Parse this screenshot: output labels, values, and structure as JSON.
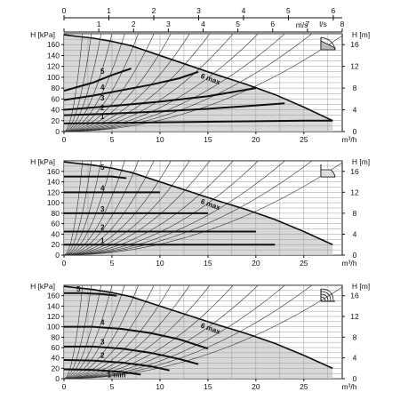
{
  "chart_data": {
    "top_axes": {
      "upper": {
        "ticks": [
          "0",
          "1",
          "2",
          "3",
          "4",
          "5",
          "6"
        ],
        "values": [
          0,
          1,
          2,
          3,
          4,
          5,
          6
        ],
        "unit_label": "m/s"
      },
      "lower": {
        "ticks": [
          "0",
          "1",
          "2",
          "3",
          "4",
          "5",
          "6",
          "7",
          "8"
        ],
        "values": [
          0,
          1,
          2,
          3,
          4,
          5,
          6,
          7,
          8
        ],
        "unit_label": "l/s"
      }
    },
    "panels": [
      {
        "type": "line",
        "mode_icon": "proportional-pressure-icon",
        "xlabel": "m³/h",
        "ylabel_left": "H [kPa]",
        "ylabel_right": "H [m]",
        "xlim": [
          0,
          29
        ],
        "ylim_left": [
          0,
          180
        ],
        "ylim_right": [
          0,
          18
        ],
        "x_ticks": [
          0,
          5,
          10,
          15,
          20,
          25
        ],
        "y_ticks_left": [
          0,
          20,
          40,
          60,
          80,
          100,
          120,
          140,
          160
        ],
        "y_ticks_right": [
          0,
          4,
          8,
          12,
          16
        ],
        "series": [
          {
            "name": "6 max",
            "x": [
              0,
              3,
              5,
              7,
              10,
              13,
              16,
              19,
              22,
              25,
              28
            ],
            "y": [
              178,
              172,
              166,
              158,
              140,
              122,
              104,
              87,
              68,
              45,
              20
            ]
          },
          {
            "name": "5",
            "x": [
              0,
              3,
              5,
              7
            ],
            "y": [
              75,
              90,
              104,
              116
            ]
          },
          {
            "name": "4",
            "x": [
              0,
              3,
              6,
              9,
              12,
              14
            ],
            "y": [
              58,
              66,
              76,
              86,
              98,
              110
            ]
          },
          {
            "name": "3",
            "x": [
              0,
              5,
              10,
              15,
              18,
              20
            ],
            "y": [
              40,
              47,
              55,
              65,
              74,
              80
            ]
          },
          {
            "name": "2",
            "x": [
              0,
              5,
              10,
              15,
              20,
              23
            ],
            "y": [
              30,
              33,
              37,
              42,
              48,
              52
            ]
          },
          {
            "name": "1",
            "x": [
              0,
              5,
              10,
              15,
              20,
              25,
              28
            ],
            "y": [
              15,
              16,
              17,
              18,
              19,
              20,
              20
            ]
          }
        ],
        "labels": [
          {
            "text": "5",
            "x": 3.8,
            "y": 106
          },
          {
            "text": "4",
            "x": 3.8,
            "y": 77
          },
          {
            "text": "3",
            "x": 3.8,
            "y": 57
          },
          {
            "text": "2",
            "x": 3.8,
            "y": 39
          },
          {
            "text": "1",
            "x": 3.8,
            "y": 23
          },
          {
            "text": "6 max",
            "x": 14.2,
            "y": 99
          }
        ]
      },
      {
        "type": "line",
        "mode_icon": "constant-pressure-icon",
        "xlabel": "m³/h",
        "ylabel_left": "H [kPa]",
        "ylabel_right": "H [m]",
        "xlim": [
          0,
          29
        ],
        "ylim_left": [
          0,
          180
        ],
        "ylim_right": [
          0,
          18
        ],
        "x_ticks": [
          0,
          5,
          10,
          15,
          20,
          25
        ],
        "y_ticks_left": [
          0,
          20,
          40,
          60,
          80,
          100,
          120,
          140,
          160
        ],
        "y_ticks_right": [
          0,
          4,
          8,
          12,
          16
        ],
        "series": [
          {
            "name": "6 max",
            "x": [
              0,
              3,
              5,
              7,
              10,
              13,
              16,
              19,
              22,
              25,
              28
            ],
            "y": [
              178,
              172,
              166,
              158,
              140,
              122,
              104,
              87,
              68,
              45,
              20
            ]
          },
          {
            "name": "5",
            "x": [
              0,
              5,
              6.5
            ],
            "y": [
              150,
              150,
              147
            ]
          },
          {
            "name": "4",
            "x": [
              0,
              10
            ],
            "y": [
              120,
              120
            ]
          },
          {
            "name": "3",
            "x": [
              0,
              15
            ],
            "y": [
              80,
              80
            ]
          },
          {
            "name": "2",
            "x": [
              0,
              20
            ],
            "y": [
              45,
              45
            ]
          },
          {
            "name": "1",
            "x": [
              0,
              22
            ],
            "y": [
              20,
              20
            ]
          }
        ],
        "labels": [
          {
            "text": "5",
            "x": 3.8,
            "y": 163
          },
          {
            "text": "4",
            "x": 3.8,
            "y": 123
          },
          {
            "text": "3",
            "x": 3.8,
            "y": 83
          },
          {
            "text": "2",
            "x": 3.8,
            "y": 48
          },
          {
            "text": "1",
            "x": 3.8,
            "y": 23
          },
          {
            "text": "6 max",
            "x": 14.2,
            "y": 99
          }
        ]
      },
      {
        "type": "line",
        "mode_icon": "constant-curve-icon",
        "xlabel": "m³/h",
        "ylabel_left": "H [kPa]",
        "ylabel_right": "H [m]",
        "xlim": [
          0,
          29
        ],
        "ylim_left": [
          0,
          180
        ],
        "ylim_right": [
          0,
          18
        ],
        "x_ticks": [
          0,
          5,
          10,
          15,
          20,
          25
        ],
        "y_ticks_left": [
          0,
          20,
          40,
          60,
          80,
          100,
          120,
          140,
          160
        ],
        "y_ticks_right": [
          0,
          4,
          8,
          12,
          16
        ],
        "series": [
          {
            "name": "6 max",
            "x": [
              0,
              3,
              5,
              7,
              10,
              13,
              16,
              19,
              22,
              25,
              28
            ],
            "y": [
              178,
              172,
              166,
              158,
              140,
              122,
              104,
              87,
              68,
              45,
              20
            ]
          },
          {
            "name": "5",
            "x": [
              0,
              2,
              4,
              5.5
            ],
            "y": [
              165,
              165,
              163,
              160
            ]
          },
          {
            "name": "4",
            "x": [
              0,
              3,
              6,
              9,
              12,
              15
            ],
            "y": [
              100,
              100,
              96,
              88,
              76,
              58
            ]
          },
          {
            "name": "3",
            "x": [
              0,
              3,
              6,
              9,
              12,
              14
            ],
            "y": [
              62,
              62,
              58,
              50,
              38,
              28
            ]
          },
          {
            "name": "2",
            "x": [
              0,
              3,
              6,
              9,
              11
            ],
            "y": [
              36,
              35,
              31,
              24,
              16
            ]
          },
          {
            "name": "1 min",
            "x": [
              0,
              3,
              6,
              8
            ],
            "y": [
              18,
              17,
              13,
              8
            ]
          }
        ],
        "labels": [
          {
            "text": "5",
            "x": 1.3,
            "y": 168
          },
          {
            "text": "4",
            "x": 3.8,
            "y": 104
          },
          {
            "text": "3",
            "x": 3.8,
            "y": 66
          },
          {
            "text": "2",
            "x": 3.8,
            "y": 40
          },
          {
            "text": "1 min",
            "x": 4.5,
            "y": 3
          },
          {
            "text": "6 max",
            "x": 14.2,
            "y": 99
          }
        ]
      }
    ]
  }
}
